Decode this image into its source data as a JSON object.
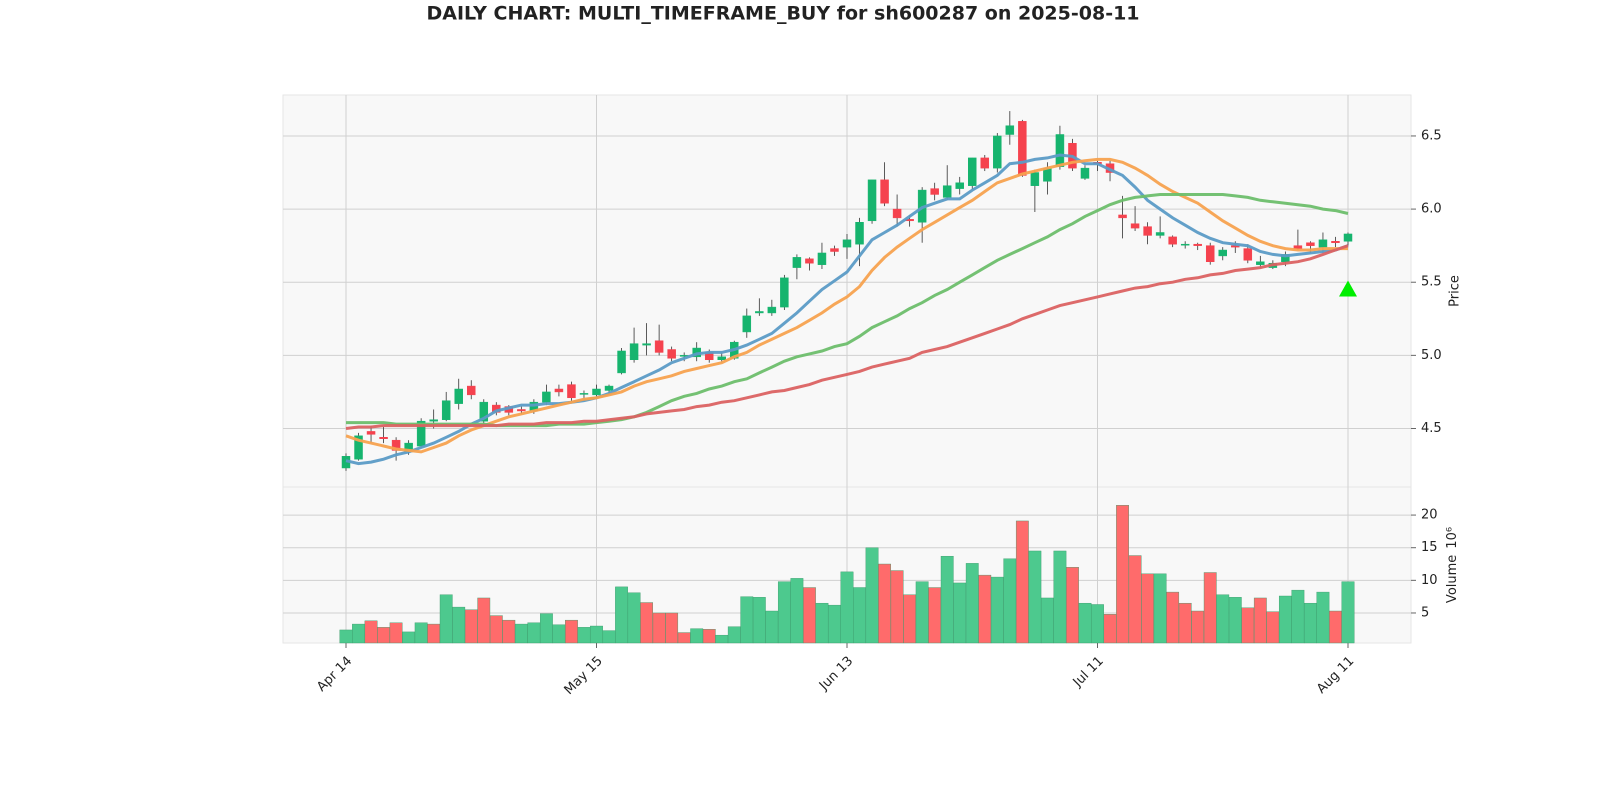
{
  "chart_data": {
    "type": "candlestick",
    "title": "DAILY CHART: MULTI_TIMEFRAME_BUY for sh600287 on 2025-08-11",
    "y_label": "Price",
    "grid": true,
    "up_color": "#16b46e",
    "down_color": "#f5424e",
    "categories": [
      "Apr 14",
      null,
      null,
      null,
      null,
      null,
      null,
      null,
      null,
      null,
      null,
      null,
      null,
      null,
      null,
      null,
      null,
      null,
      null,
      null,
      "May 15",
      null,
      null,
      null,
      null,
      null,
      null,
      null,
      null,
      null,
      null,
      null,
      null,
      null,
      null,
      null,
      null,
      null,
      null,
      null,
      "Jun 13",
      null,
      null,
      null,
      null,
      null,
      null,
      null,
      null,
      null,
      null,
      null,
      null,
      null,
      null,
      null,
      null,
      null,
      null,
      null,
      "Jul 11",
      null,
      null,
      null,
      null,
      null,
      null,
      null,
      null,
      null,
      null,
      null,
      null,
      null,
      null,
      null,
      null,
      null,
      null,
      null,
      "Aug 11"
    ],
    "open": [
      4.23,
      4.29,
      4.48,
      4.44,
      4.42,
      4.34,
      4.38,
      4.55,
      4.56,
      4.67,
      4.79,
      4.55,
      4.66,
      4.65,
      4.63,
      4.62,
      4.68,
      4.77,
      4.8,
      4.74,
      4.73,
      4.76,
      4.88,
      4.97,
      5.07,
      5.1,
      5.04,
      5.0,
      4.99,
      5.02,
      4.97,
      4.98,
      5.16,
      5.29,
      5.29,
      5.33,
      5.6,
      5.66,
      5.62,
      5.73,
      5.74,
      5.76,
      5.92,
      6.2,
      6.0,
      5.93,
      5.91,
      6.14,
      6.08,
      6.14,
      6.16,
      6.35,
      6.28,
      6.51,
      6.6,
      6.16,
      6.19,
      6.29,
      6.45,
      6.21,
      6.32,
      6.31,
      5.96,
      5.9,
      5.88,
      5.82,
      5.81,
      5.76,
      5.76,
      5.75,
      5.68,
      5.75,
      5.73,
      5.62,
      5.6,
      5.64,
      5.75,
      5.77,
      5.74,
      5.78,
      5.78
    ],
    "high": [
      4.33,
      4.47,
      4.52,
      4.51,
      4.44,
      4.42,
      4.57,
      4.63,
      4.75,
      4.84,
      4.83,
      4.7,
      4.68,
      4.66,
      4.65,
      4.7,
      4.8,
      4.8,
      4.82,
      4.76,
      4.8,
      4.8,
      5.05,
      5.19,
      5.22,
      5.21,
      5.06,
      5.02,
      5.09,
      5.04,
      5.02,
      5.1,
      5.32,
      5.39,
      5.38,
      5.55,
      5.69,
      5.67,
      5.77,
      5.75,
      5.83,
      5.94,
      6.2,
      6.32,
      6.1,
      5.96,
      6.15,
      6.18,
      6.3,
      6.22,
      6.35,
      6.37,
      6.52,
      6.67,
      6.61,
      6.27,
      6.32,
      6.57,
      6.48,
      6.3,
      6.33,
      6.33,
      6.09,
      6.02,
      5.91,
      5.95,
      5.82,
      5.78,
      5.77,
      5.77,
      5.74,
      5.78,
      5.76,
      5.68,
      5.65,
      5.71,
      5.86,
      5.78,
      5.84,
      5.81,
      5.84
    ],
    "low": [
      4.21,
      4.28,
      4.4,
      4.4,
      4.28,
      4.32,
      4.37,
      4.5,
      4.55,
      4.63,
      4.7,
      4.53,
      4.59,
      4.59,
      4.6,
      4.6,
      4.66,
      4.72,
      4.69,
      4.7,
      4.7,
      4.74,
      4.87,
      4.95,
      5.0,
      5.0,
      4.96,
      4.96,
      4.96,
      4.95,
      4.95,
      4.97,
      5.12,
      5.27,
      5.27,
      5.31,
      5.52,
      5.58,
      5.59,
      5.68,
      5.66,
      5.61,
      5.9,
      6.02,
      5.88,
      5.88,
      5.77,
      6.06,
      6.06,
      6.1,
      6.14,
      6.26,
      6.25,
      6.44,
      6.22,
      5.98,
      6.1,
      6.27,
      6.26,
      6.2,
      6.26,
      6.19,
      5.8,
      5.85,
      5.76,
      5.8,
      5.74,
      5.73,
      5.72,
      5.62,
      5.65,
      5.7,
      5.63,
      5.6,
      5.59,
      5.61,
      5.72,
      5.7,
      5.7,
      5.74,
      5.75
    ],
    "close": [
      4.31,
      4.45,
      4.46,
      4.43,
      4.35,
      4.4,
      4.55,
      4.56,
      4.69,
      4.77,
      4.73,
      4.68,
      4.61,
      4.61,
      4.62,
      4.68,
      4.75,
      4.75,
      4.71,
      4.74,
      4.77,
      4.79,
      5.03,
      5.08,
      5.08,
      5.02,
      4.98,
      5.0,
      5.05,
      4.97,
      4.99,
      5.09,
      5.27,
      5.3,
      5.33,
      5.53,
      5.67,
      5.63,
      5.7,
      5.71,
      5.79,
      5.91,
      6.2,
      6.04,
      5.94,
      5.92,
      6.13,
      6.1,
      6.16,
      6.18,
      6.35,
      6.28,
      6.5,
      6.57,
      6.23,
      6.25,
      6.28,
      6.51,
      6.28,
      6.28,
      6.31,
      6.25,
      5.94,
      5.87,
      5.82,
      5.84,
      5.76,
      5.76,
      5.75,
      5.64,
      5.72,
      5.74,
      5.65,
      5.64,
      5.63,
      5.69,
      5.73,
      5.75,
      5.79,
      5.77,
      5.83
    ],
    "ylim": [
      4.1,
      6.78
    ],
    "yticks": [
      4.5,
      {
        "value": 5.0,
        "label": "5.0"
      },
      5.5,
      {
        "value": 6.0,
        "label": "6.0"
      },
      6.5
    ],
    "lines": [
      {
        "color": "#5b9bc6",
        "values": [
          4.28,
          4.26,
          4.27,
          4.29,
          4.32,
          4.34,
          4.37,
          4.4,
          4.44,
          4.48,
          4.53,
          4.57,
          4.62,
          4.64,
          4.66,
          4.66,
          4.67,
          4.67,
          4.68,
          4.69,
          4.71,
          4.74,
          4.78,
          4.82,
          4.86,
          4.9,
          4.95,
          4.98,
          5.01,
          5.02,
          5.02,
          5.04,
          5.07,
          5.11,
          5.15,
          5.22,
          5.29,
          5.37,
          5.45,
          5.51,
          5.57,
          5.68,
          5.79,
          5.84,
          5.89,
          5.95,
          6.01,
          6.04,
          6.07,
          6.07,
          6.13,
          6.18,
          6.23,
          6.31,
          6.32,
          6.34,
          6.35,
          6.37,
          6.36,
          6.31,
          6.31,
          6.27,
          6.23,
          6.15,
          6.06,
          6.0,
          5.94,
          5.89,
          5.84,
          5.8,
          5.77,
          5.76,
          5.75,
          5.71,
          5.69,
          5.68,
          5.69,
          5.7,
          5.71,
          5.72,
          5.75
        ]
      },
      {
        "color": "#f7a24f",
        "values": [
          4.45,
          4.42,
          4.4,
          4.38,
          4.36,
          4.35,
          4.34,
          4.37,
          4.4,
          4.45,
          4.49,
          4.52,
          4.55,
          4.58,
          4.6,
          4.62,
          4.64,
          4.66,
          4.68,
          4.7,
          4.71,
          4.73,
          4.75,
          4.79,
          4.82,
          4.84,
          4.86,
          4.89,
          4.91,
          4.93,
          4.95,
          4.99,
          5.02,
          5.07,
          5.11,
          5.15,
          5.19,
          5.24,
          5.29,
          5.35,
          5.4,
          5.47,
          5.58,
          5.67,
          5.74,
          5.8,
          5.86,
          5.91,
          5.96,
          6.01,
          6.06,
          6.12,
          6.18,
          6.21,
          6.24,
          6.26,
          6.28,
          6.3,
          6.32,
          6.33,
          6.34,
          6.34,
          6.32,
          6.28,
          6.23,
          6.17,
          6.12,
          6.08,
          6.04,
          5.98,
          5.92,
          5.87,
          5.82,
          5.78,
          5.75,
          5.73,
          5.72,
          5.72,
          5.73,
          5.73,
          5.73
        ]
      },
      {
        "color": "#6dbe6b",
        "values": [
          4.54,
          4.54,
          4.54,
          4.54,
          4.53,
          4.53,
          4.53,
          4.53,
          4.53,
          4.53,
          4.53,
          4.53,
          4.52,
          4.52,
          4.52,
          4.52,
          4.52,
          4.53,
          4.53,
          4.53,
          4.54,
          4.55,
          4.56,
          4.58,
          4.61,
          4.65,
          4.69,
          4.72,
          4.74,
          4.77,
          4.79,
          4.82,
          4.84,
          4.88,
          4.92,
          4.96,
          4.99,
          5.01,
          5.03,
          5.06,
          5.08,
          5.13,
          5.19,
          5.23,
          5.27,
          5.32,
          5.36,
          5.41,
          5.45,
          5.5,
          5.55,
          5.6,
          5.65,
          5.69,
          5.73,
          5.77,
          5.81,
          5.86,
          5.9,
          5.95,
          5.99,
          6.03,
          6.06,
          6.08,
          6.09,
          6.1,
          6.1,
          6.1,
          6.1,
          6.1,
          6.1,
          6.09,
          6.08,
          6.06,
          6.05,
          6.04,
          6.03,
          6.02,
          6.0,
          5.99,
          5.97
        ]
      },
      {
        "color": "#db6262",
        "values": [
          4.5,
          4.51,
          4.51,
          4.52,
          4.52,
          4.52,
          4.52,
          4.52,
          4.52,
          4.52,
          4.52,
          4.52,
          4.52,
          4.53,
          4.53,
          4.53,
          4.54,
          4.54,
          4.54,
          4.55,
          4.55,
          4.56,
          4.57,
          4.58,
          4.6,
          4.61,
          4.62,
          4.63,
          4.65,
          4.66,
          4.68,
          4.69,
          4.71,
          4.73,
          4.75,
          4.76,
          4.78,
          4.8,
          4.83,
          4.85,
          4.87,
          4.89,
          4.92,
          4.94,
          4.96,
          4.98,
          5.02,
          5.04,
          5.06,
          5.09,
          5.12,
          5.15,
          5.18,
          5.21,
          5.25,
          5.28,
          5.31,
          5.34,
          5.36,
          5.38,
          5.4,
          5.42,
          5.44,
          5.46,
          5.47,
          5.49,
          5.5,
          5.52,
          5.53,
          5.55,
          5.56,
          5.58,
          5.59,
          5.6,
          5.62,
          5.63,
          5.64,
          5.66,
          5.69,
          5.72,
          5.75
        ]
      }
    ],
    "signal": {
      "color": "#00ee00",
      "values": [
        null,
        null,
        null,
        null,
        null,
        null,
        null,
        null,
        null,
        null,
        null,
        null,
        null,
        null,
        null,
        null,
        null,
        null,
        null,
        null,
        null,
        null,
        null,
        null,
        null,
        null,
        null,
        null,
        null,
        null,
        null,
        null,
        null,
        null,
        null,
        null,
        null,
        null,
        null,
        null,
        null,
        null,
        null,
        null,
        null,
        null,
        null,
        null,
        null,
        null,
        null,
        null,
        null,
        null,
        null,
        null,
        null,
        null,
        null,
        null,
        null,
        null,
        null,
        null,
        null,
        null,
        null,
        null,
        null,
        null,
        null,
        null,
        null,
        null,
        null,
        null,
        null,
        null,
        null,
        null,
        5.45
      ]
    },
    "volume": {
      "label": "Volume",
      "unit": "10⁶",
      "ylim": [
        0.4,
        24.3
      ],
      "yticks": [
        5,
        10,
        15,
        20
      ],
      "values": [
        2.4,
        3.3,
        3.8,
        2.8,
        3.5,
        2.1,
        3.5,
        3.3,
        7.8,
        5.9,
        5.5,
        7.3,
        4.6,
        3.9,
        3.3,
        3.5,
        4.9,
        3.2,
        3.9,
        2.8,
        3.0,
        2.3,
        9.0,
        8.1,
        6.6,
        5.0,
        5.0,
        2.0,
        2.6,
        2.5,
        1.6,
        2.9,
        7.5,
        7.4,
        5.3,
        9.8,
        10.3,
        8.9,
        6.5,
        6.2,
        11.3,
        8.9,
        15.0,
        12.5,
        11.5,
        7.8,
        9.8,
        8.9,
        13.7,
        9.6,
        12.6,
        10.8,
        10.5,
        13.3,
        19.1,
        14.5,
        7.3,
        14.5,
        12.0,
        6.5,
        6.3,
        4.8,
        21.5,
        13.8,
        11.0,
        11.0,
        8.2,
        6.5,
        5.3,
        11.2,
        7.8,
        7.4,
        5.8,
        7.3,
        5.2,
        7.6,
        8.5,
        6.5,
        8.2,
        5.3,
        9.8
      ],
      "colors": [
        "#4dc98e",
        "#4dc98e",
        "#ff6b6b",
        "#ff6b6b",
        "#ff6b6b",
        "#4dc98e",
        "#4dc98e",
        "#ff6b6b",
        "#4dc98e",
        "#4dc98e",
        "#ff6b6b",
        "#ff6b6b",
        "#ff6b6b",
        "#ff6b6b",
        "#4dc98e",
        "#4dc98e",
        "#4dc98e",
        "#4dc98e",
        "#ff6b6b",
        "#4dc98e",
        "#4dc98e",
        "#4dc98e",
        "#4dc98e",
        "#4dc98e",
        "#ff6b6b",
        "#ff6b6b",
        "#ff6b6b",
        "#ff6b6b",
        "#4dc98e",
        "#ff6b6b",
        "#4dc98e",
        "#4dc98e",
        "#4dc98e",
        "#4dc98e",
        "#4dc98e",
        "#4dc98e",
        "#4dc98e",
        "#ff6b6b",
        "#4dc98e",
        "#4dc98e",
        "#4dc98e",
        "#4dc98e",
        "#4dc98e",
        "#ff6b6b",
        "#ff6b6b",
        "#ff6b6b",
        "#4dc98e",
        "#ff6b6b",
        "#4dc98e",
        "#4dc98e",
        "#4dc98e",
        "#ff6b6b",
        "#4dc98e",
        "#4dc98e",
        "#ff6b6b",
        "#4dc98e",
        "#4dc98e",
        "#4dc98e",
        "#ff6b6b",
        "#4dc98e",
        "#4dc98e",
        "#ff6b6b",
        "#ff6b6b",
        "#ff6b6b",
        "#ff6b6b",
        "#4dc98e",
        "#ff6b6b",
        "#ff6b6b",
        "#ff6b6b",
        "#ff6b6b",
        "#4dc98e",
        "#4dc98e",
        "#ff6b6b",
        "#ff6b6b",
        "#ff6b6b",
        "#4dc98e",
        "#4dc98e",
        "#4dc98e",
        "#4dc98e",
        "#ff6b6b",
        "#4dc98e"
      ]
    }
  }
}
